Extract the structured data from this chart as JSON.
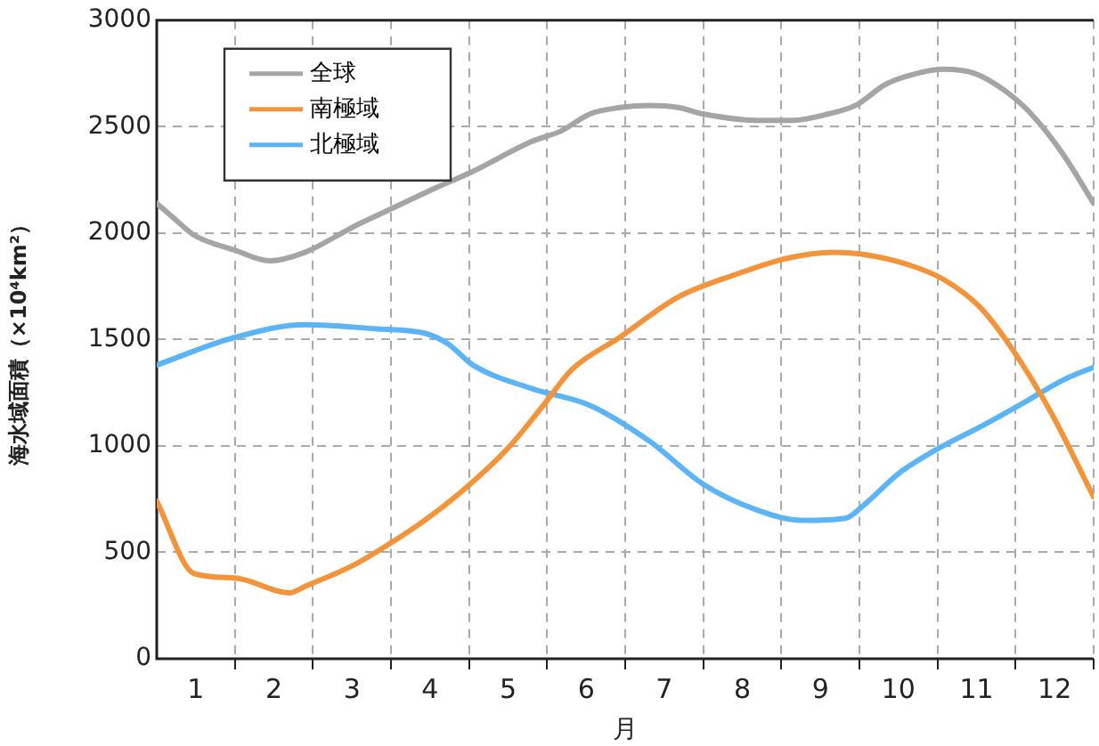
{
  "chart_data": {
    "type": "line",
    "xlabel": "月",
    "ylabel": "海水域面積（×10⁴km²）",
    "xlim": [
      0,
      12
    ],
    "ylim": [
      0,
      3000
    ],
    "yticks": [
      0,
      500,
      1000,
      1500,
      2000,
      2500,
      3000
    ],
    "xticks": [
      {
        "value": 0.5,
        "label": "1"
      },
      {
        "value": 1,
        "label": null
      },
      {
        "value": 1.5,
        "label": "2"
      },
      {
        "value": 2,
        "label": null
      },
      {
        "value": 2.5,
        "label": "3"
      },
      {
        "value": 3,
        "label": null
      },
      {
        "value": 3.5,
        "label": "4"
      },
      {
        "value": 4,
        "label": null
      },
      {
        "value": 4.5,
        "label": "5"
      },
      {
        "value": 5,
        "label": null
      },
      {
        "value": 5.5,
        "label": "6"
      },
      {
        "value": 6,
        "label": null
      },
      {
        "value": 6.5,
        "label": "7"
      },
      {
        "value": 7,
        "label": null
      },
      {
        "value": 7.5,
        "label": "8"
      },
      {
        "value": 8,
        "label": null
      },
      {
        "value": 8.5,
        "label": "9"
      },
      {
        "value": 9,
        "label": null
      },
      {
        "value": 9.5,
        "label": "10"
      },
      {
        "value": 10,
        "label": null
      },
      {
        "value": 10.5,
        "label": "11"
      },
      {
        "value": 11,
        "label": null
      },
      {
        "value": 11.5,
        "label": "12"
      },
      {
        "value": 12,
        "label": null
      }
    ],
    "grid": true,
    "legend": "top left",
    "marker": "none",
    "line_style": "solid",
    "series": [
      {
        "name": "全球",
        "color": "#a5a5a5",
        "x": [
          0,
          0.25,
          0.48,
          1.0,
          1.45,
          1.9,
          2.52,
          2.98,
          3.5,
          4.05,
          4.8,
          5.18,
          5.55,
          5.93,
          6.32,
          6.68,
          7.0,
          7.68,
          8.14,
          8.6,
          8.95,
          9.34,
          9.73,
          10.07,
          10.48,
          10.86,
          11.2,
          11.61,
          12
        ],
        "values": [
          2140,
          2060,
          1990,
          1920,
          1870,
          1910,
          2030,
          2110,
          2200,
          2290,
          2430,
          2480,
          2560,
          2590,
          2600,
          2590,
          2560,
          2530,
          2530,
          2560,
          2600,
          2700,
          2750,
          2770,
          2750,
          2670,
          2560,
          2370,
          2140
        ]
      },
      {
        "name": "南極域",
        "color": "#f4943a",
        "x": [
          0,
          0.48,
          1.0,
          1.7,
          1.9,
          2.52,
          2.98,
          3.43,
          3.95,
          4.5,
          4.95,
          5.32,
          5.93,
          6.68,
          7.45,
          8.05,
          8.66,
          9.05,
          9.64,
          10.09,
          10.55,
          10.93,
          11.45,
          12
        ],
        "values": [
          740,
          400,
          380,
          310,
          340,
          440,
          540,
          650,
          800,
          990,
          1190,
          1360,
          1510,
          1700,
          1810,
          1880,
          1910,
          1900,
          1850,
          1780,
          1650,
          1470,
          1160,
          760
        ]
      },
      {
        "name": "北極域",
        "color": "#5ab4f5",
        "x": [
          0,
          1.0,
          1.9,
          2.82,
          3.43,
          3.73,
          4.05,
          4.8,
          5.55,
          6.32,
          7.0,
          7.68,
          8.27,
          8.82,
          9.05,
          9.5,
          10.02,
          10.55,
          11.09,
          11.61,
          12
        ],
        "values": [
          1380,
          1510,
          1570,
          1550,
          1530,
          1480,
          1380,
          1270,
          1190,
          1020,
          820,
          700,
          650,
          660,
          720,
          870,
          990,
          1090,
          1200,
          1310,
          1370
        ]
      }
    ]
  }
}
